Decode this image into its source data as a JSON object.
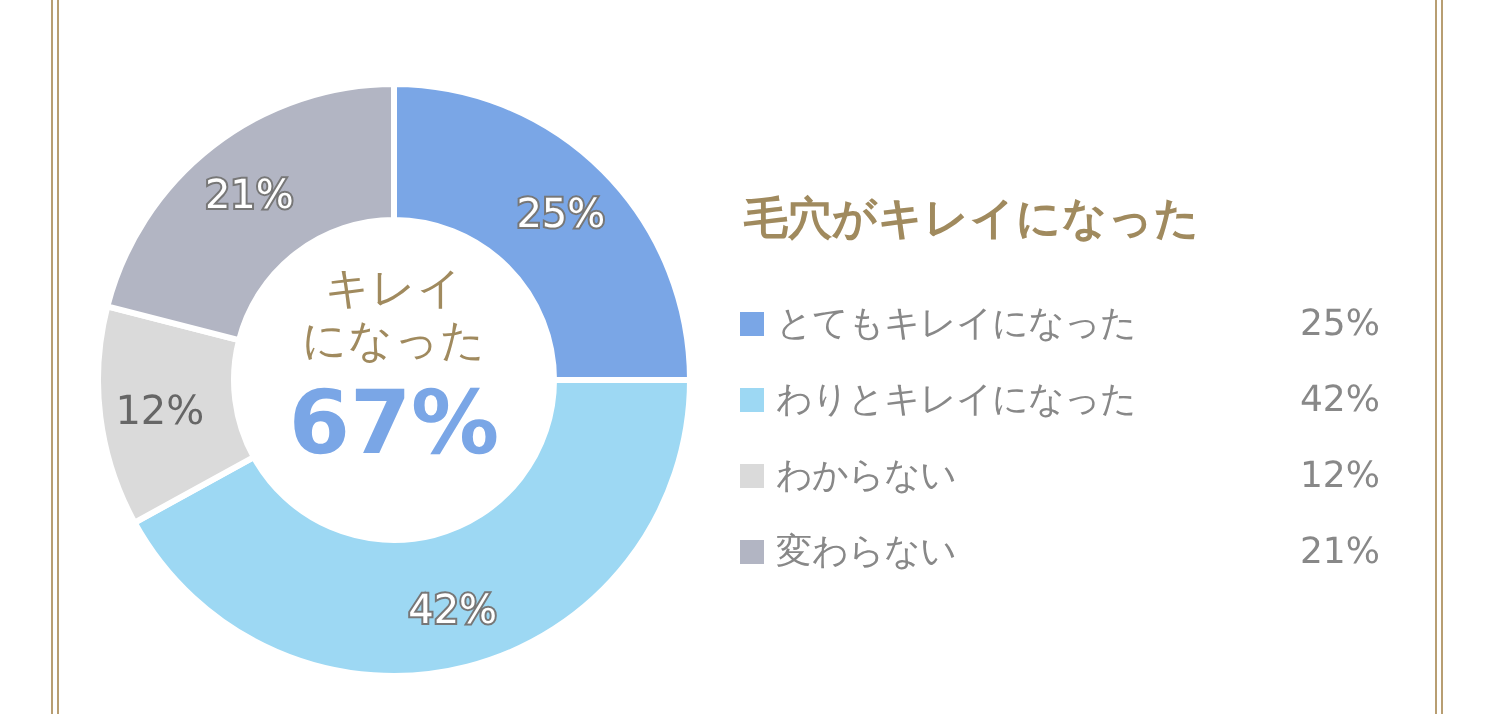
{
  "chart_data": {
    "type": "donut",
    "title": "毛穴がキレイになった",
    "categories": [
      "とてもキレイになった",
      "わりとキレイになった",
      "わからない",
      "変わらない"
    ],
    "values": [
      25,
      42,
      12,
      21
    ],
    "value_labels": [
      "25%",
      "42%",
      "12%",
      "21%"
    ],
    "colors": [
      "#7aa6e6",
      "#9dd8f3",
      "#dadada",
      "#b2b5c3"
    ],
    "legend": "right",
    "annotations": [
      "キレイ",
      "になった",
      "67%"
    ]
  }
}
